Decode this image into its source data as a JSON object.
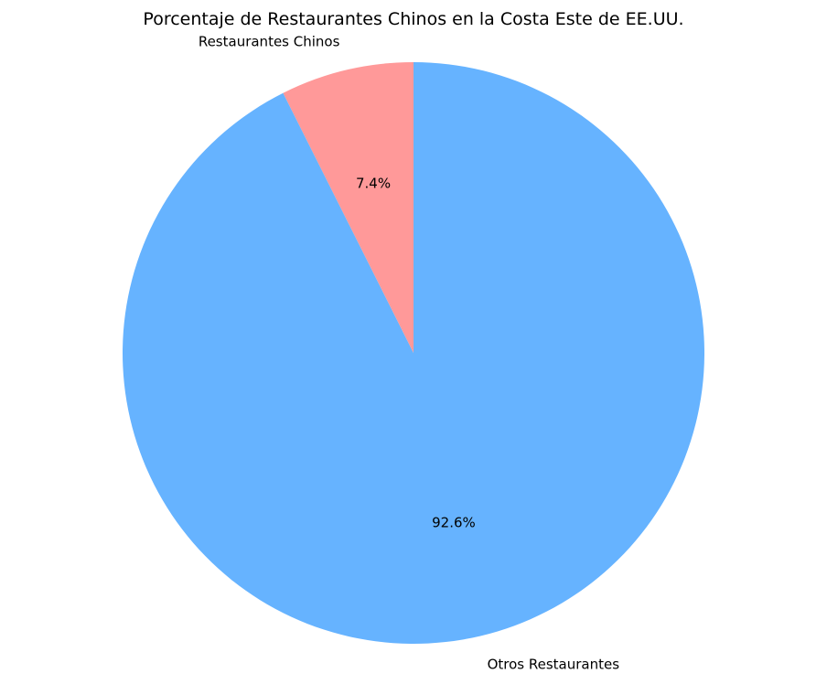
{
  "chart_data": {
    "type": "pie",
    "title": "Porcentaje de Restaurantes Chinos en la Costa Este de EE.UU.",
    "start_angle_deg": 90,
    "direction": "counterclockwise",
    "slices": [
      {
        "label": "Restaurantes Chinos",
        "percent_label": "7.4%",
        "value": 7.4,
        "color": "#ff9999"
      },
      {
        "label": "Otros Restaurantes",
        "percent_label": "92.6%",
        "value": 92.6,
        "color": "#66b3ff"
      }
    ]
  }
}
